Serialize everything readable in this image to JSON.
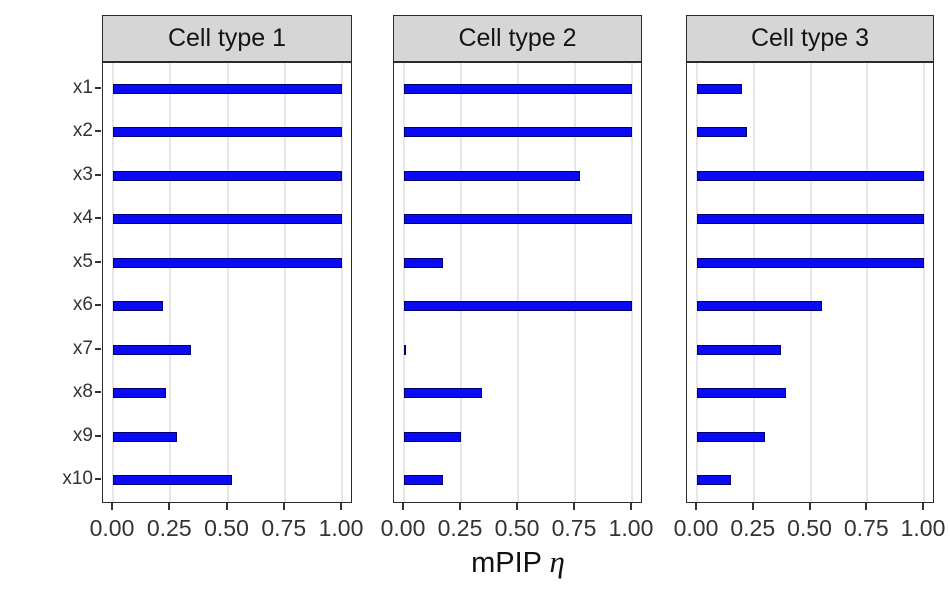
{
  "figure": {
    "xlabel_main": "mPIP",
    "xlabel_symbol": "η",
    "x_tick_labels": [
      "0.00",
      "0.25",
      "0.50",
      "0.75",
      "1.00"
    ],
    "colors": {
      "bar_fill": "#0a0af5",
      "bar_edge": "#000070",
      "strip_bg": "#d6d6d6",
      "panel_border": "#2b2b2b",
      "gridline": "#e6e6e6",
      "axis_text": "#333333"
    }
  },
  "chart_data": {
    "type": "bar",
    "orientation": "horizontal",
    "title": "",
    "xlabel": "mPIP η",
    "ylabel": "",
    "xlim": [
      0,
      1
    ],
    "x_ticks": [
      0,
      0.25,
      0.5,
      0.75,
      1.0
    ],
    "grid": "major-vertical-only",
    "legend": "none",
    "categories": [
      "x1",
      "x2",
      "x3",
      "x4",
      "x5",
      "x6",
      "x7",
      "x8",
      "x9",
      "x10"
    ],
    "facets": [
      {
        "label": "Cell type 1",
        "values": [
          1.0,
          1.0,
          1.0,
          1.0,
          1.0,
          0.22,
          0.34,
          0.23,
          0.28,
          0.52
        ]
      },
      {
        "label": "Cell type 2",
        "values": [
          1.0,
          1.0,
          0.77,
          1.0,
          0.17,
          1.0,
          0.01,
          0.34,
          0.25,
          0.17
        ]
      },
      {
        "label": "Cell type 3",
        "values": [
          0.2,
          0.22,
          1.0,
          1.0,
          1.0,
          0.55,
          0.37,
          0.39,
          0.3,
          0.15
        ]
      }
    ]
  }
}
